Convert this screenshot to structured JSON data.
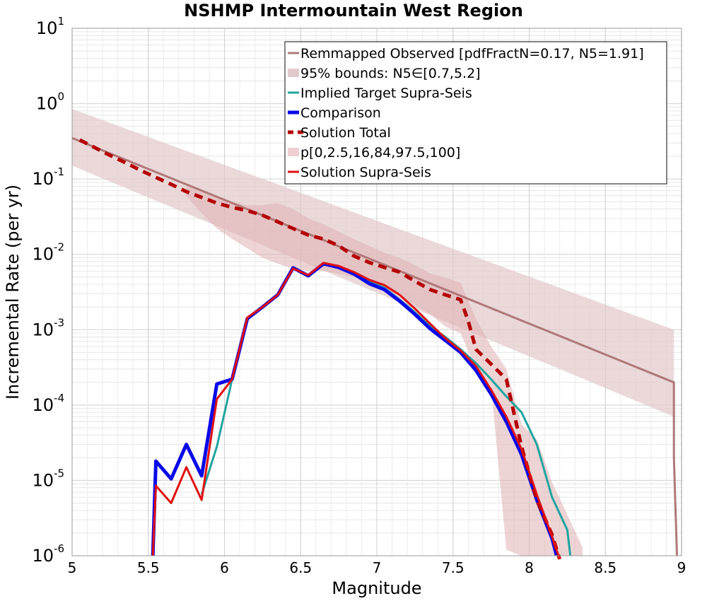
{
  "chart_data": {
    "type": "line",
    "title": "NSHMP Intermountain West Region",
    "xlabel": "Magnitude",
    "ylabel": "Incremental Rate (per yr)",
    "xlim": [
      5,
      9
    ],
    "ylim": [
      1e-06,
      10
    ],
    "yscale": "log",
    "grid": true,
    "legend_position": "top-right",
    "x_ticks": [
      "5",
      "5.5",
      "6",
      "6.5",
      "7",
      "7.5",
      "8",
      "8.5",
      "9"
    ],
    "x_tick_values": [
      5,
      5.5,
      6,
      6.5,
      7,
      7.5,
      8,
      8.5,
      9
    ],
    "y_ticks": [
      {
        "base": "10",
        "exp": "1",
        "value": 10
      },
      {
        "base": "10",
        "exp": "0",
        "value": 1
      },
      {
        "base": "10",
        "exp": "-1",
        "value": 0.1
      },
      {
        "base": "10",
        "exp": "-2",
        "value": 0.01
      },
      {
        "base": "10",
        "exp": "-3",
        "value": 0.001
      },
      {
        "base": "10",
        "exp": "-4",
        "value": 0.0001
      },
      {
        "base": "10",
        "exp": "-5",
        "value": 1e-05
      },
      {
        "base": "10",
        "exp": "-6",
        "value": 1e-06
      }
    ],
    "series": [
      {
        "name": "Remmapped Observed [pdfFractN=0.17, N5=1.91]",
        "kind": "line",
        "color": "#b07878",
        "width": 3,
        "x": [
          5.0,
          8.95,
          8.95,
          8.97
        ],
        "y": [
          0.35,
          0.0002,
          2e-05,
          1e-06
        ]
      },
      {
        "name": "95% bounds: N5∈[0.7,5.2]",
        "kind": "band",
        "color": "#e2c9cb",
        "opacity": 0.7,
        "x": [
          5.0,
          8.95
        ],
        "lower": [
          0.15,
          7e-05
        ],
        "upper": [
          0.85,
          0.001
        ]
      },
      {
        "name": "Implied Target Supra-Seis",
        "kind": "line",
        "color": "#20a4a0",
        "width": 3,
        "x": [
          5.85,
          5.95,
          6.05,
          6.15,
          6.25,
          6.35,
          6.45,
          6.55,
          6.65,
          6.75,
          6.85,
          6.95,
          7.05,
          7.15,
          7.25,
          7.35,
          7.45,
          7.55,
          7.65,
          7.75,
          7.85,
          7.95,
          8.05,
          8.15,
          8.25,
          8.27
        ],
        "y": [
          6.5e-06,
          2.8e-05,
          0.00022,
          0.0014,
          0.002,
          0.0029,
          0.0065,
          0.0053,
          0.0074,
          0.0068,
          0.0057,
          0.0044,
          0.0036,
          0.0025,
          0.0017,
          0.0011,
          0.0008,
          0.00055,
          0.00036,
          0.00022,
          0.00013,
          8e-05,
          3e-05,
          6e-06,
          2.2e-06,
          1e-06
        ]
      },
      {
        "name": "Comparison",
        "kind": "line",
        "color": "#0a0ae8",
        "width": 5,
        "x": [
          5.53,
          5.53,
          5.55,
          5.65,
          5.75,
          5.85,
          5.95,
          6.05,
          6.15,
          6.25,
          6.35,
          6.45,
          6.55,
          6.65,
          6.75,
          6.85,
          6.95,
          7.05,
          7.15,
          7.25,
          7.35,
          7.45,
          7.55,
          7.65,
          7.75,
          7.85,
          7.95,
          8.05,
          8.15,
          8.18
        ],
        "y": [
          1e-06,
          1e-06,
          1.8e-05,
          1.05e-05,
          3e-05,
          1.15e-05,
          0.00019,
          0.00022,
          0.0014,
          0.002,
          0.0029,
          0.0066,
          0.0052,
          0.0075,
          0.0067,
          0.0055,
          0.0041,
          0.0034,
          0.0024,
          0.0016,
          0.00103,
          0.00072,
          0.0005,
          0.00029,
          0.00014,
          6e-05,
          2.2e-05,
          5.5e-06,
          1.7e-06,
          1e-06
        ]
      },
      {
        "name": "Solution Total",
        "kind": "line",
        "color": "#b40000",
        "width": 5,
        "dash": "12,8",
        "x": [
          5.05,
          5.15,
          5.25,
          5.35,
          5.45,
          5.55,
          5.65,
          5.75,
          5.85,
          5.95,
          6.05,
          6.15,
          6.25,
          6.35,
          6.45,
          6.55,
          6.65,
          6.75,
          6.85,
          6.95,
          7.05,
          7.15,
          7.25,
          7.35,
          7.45,
          7.55,
          7.6,
          7.65,
          7.75,
          7.85,
          7.95,
          8.05,
          8.15,
          8.2
        ],
        "y": [
          0.33,
          0.26,
          0.205,
          0.165,
          0.13,
          0.105,
          0.085,
          0.068,
          0.057,
          0.048,
          0.042,
          0.038,
          0.033,
          0.027,
          0.022,
          0.018,
          0.016,
          0.013,
          0.0095,
          0.0078,
          0.0067,
          0.0058,
          0.0044,
          0.0034,
          0.0029,
          0.0025,
          0.0013,
          0.00055,
          0.00035,
          0.00022,
          2.8e-05,
          5.5e-06,
          1.9e-06,
          9e-07
        ]
      },
      {
        "name": "p[0,2.5,16,84,97.5,100]",
        "kind": "band",
        "color": "#e0b0b2",
        "opacity": 0.55,
        "x": [
          5.75,
          5.85,
          5.95,
          6.05,
          6.15,
          6.25,
          6.35,
          6.45,
          6.55,
          6.65,
          6.75,
          6.85,
          6.95,
          7.05,
          7.15,
          7.25,
          7.35,
          7.45,
          7.55,
          7.65,
          7.75,
          7.85,
          7.95,
          8.05,
          8.15,
          8.25,
          8.35
        ],
        "lower": [
          0.06,
          0.035,
          0.022,
          0.016,
          0.012,
          0.009,
          0.0075,
          0.0065,
          0.006,
          0.006,
          0.0055,
          0.005,
          0.0042,
          0.0035,
          0.0028,
          0.0021,
          0.0016,
          0.0011,
          0.0009,
          0.0003,
          0.00018,
          1.2e-06,
          1e-06,
          1e-06,
          1e-06,
          1e-06,
          1e-06
        ],
        "upper": [
          0.08,
          0.068,
          0.058,
          0.05,
          0.045,
          0.045,
          0.048,
          0.04,
          0.03,
          0.025,
          0.02,
          0.016,
          0.013,
          0.0105,
          0.009,
          0.0072,
          0.0056,
          0.0049,
          0.0042,
          0.0014,
          0.0006,
          0.0003,
          5.5e-05,
          3.5e-05,
          9.5e-06,
          3.5e-06,
          1.3e-06
        ]
      },
      {
        "name": "Solution Supra-Seis",
        "kind": "line",
        "color": "#e01010",
        "width": 3,
        "x": [
          5.53,
          5.53,
          5.55,
          5.65,
          5.75,
          5.85,
          5.95,
          6.05,
          6.15,
          6.25,
          6.35,
          6.45,
          6.55,
          6.65,
          6.75,
          6.85,
          6.95,
          7.05,
          7.15,
          7.25,
          7.35,
          7.45,
          7.55,
          7.65,
          7.75,
          7.85,
          7.95,
          8.05,
          8.15,
          8.2
        ],
        "y": [
          1e-06,
          1e-06,
          8.5e-06,
          5e-06,
          1.5e-05,
          5.5e-06,
          0.00012,
          0.00022,
          0.00145,
          0.002,
          0.0029,
          0.0065,
          0.0053,
          0.0077,
          0.007,
          0.0058,
          0.0046,
          0.0039,
          0.0029,
          0.0019,
          0.0012,
          0.00077,
          0.00053,
          0.00033,
          0.00016,
          7e-05,
          2.6e-05,
          6.5e-06,
          1.8e-06,
          9e-07
        ]
      }
    ],
    "legend": [
      {
        "label": "Remmapped Observed [pdfFractN=0.17, N5=1.91]",
        "style": "line",
        "color": "#b07878",
        "width": 3
      },
      {
        "label": "95% bounds: N5∈[0.7,5.2]",
        "style": "band",
        "color": "#e2c9cb"
      },
      {
        "label": "Implied Target Supra-Seis",
        "style": "line",
        "color": "#20a4a0",
        "width": 3
      },
      {
        "label": "Comparison",
        "style": "line",
        "color": "#0a0ae8",
        "width": 5
      },
      {
        "label": "Solution Total",
        "style": "dash",
        "color": "#b40000",
        "width": 5
      },
      {
        "label": "p[0,2.5,16,84,97.5,100]",
        "style": "band",
        "color": "#efd0d2"
      },
      {
        "label": "Solution Supra-Seis",
        "style": "line",
        "color": "#e01010",
        "width": 3
      }
    ]
  }
}
